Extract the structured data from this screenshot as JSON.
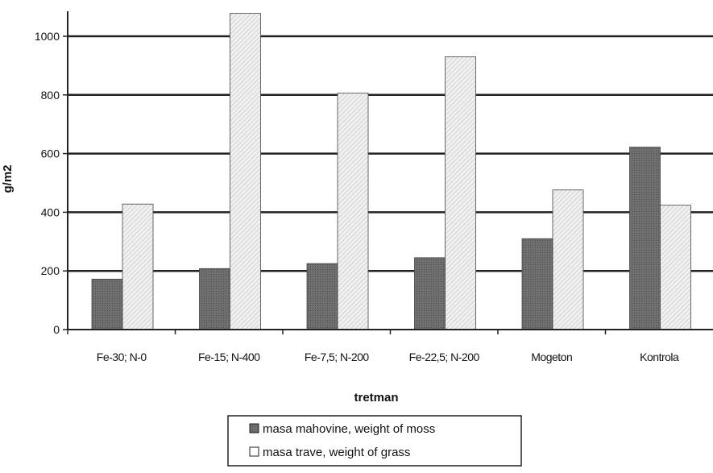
{
  "chart_data": {
    "type": "bar",
    "categories": [
      "Fe-30; N-0",
      "Fe-15; N-400",
      "Fe-7,5; N-200",
      "Fe-22,5; N-200",
      "Mogeton",
      "Kontrola"
    ],
    "series": [
      {
        "name": "masa mahovine, weight of moss",
        "values": [
          172,
          208,
          225,
          245,
          310,
          622
        ],
        "color": "#6f6f6f"
      },
      {
        "name": "masa trave, weight of grass",
        "values": [
          428,
          1078,
          806,
          930,
          476,
          424
        ],
        "color": "#e9e9e9"
      }
    ],
    "xlabel": "tretman",
    "ylabel": "g/m2",
    "ylim": [
      0,
      1000
    ],
    "yticks": [
      0,
      200,
      400,
      600,
      800,
      1000
    ],
    "grid": true,
    "legend_position": "bottom-center"
  }
}
